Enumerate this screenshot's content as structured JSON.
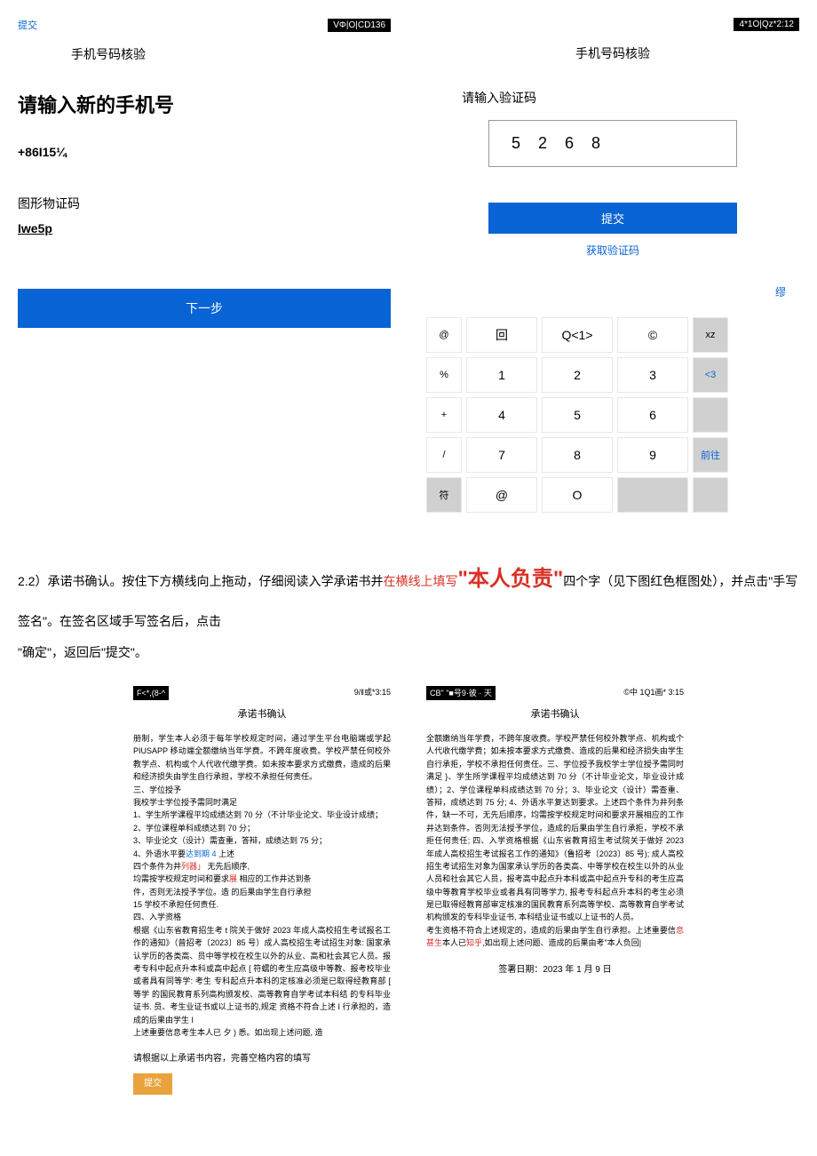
{
  "topLeft": {
    "submitLabel": "提交",
    "statusBadge": "VΦ|O|CD136",
    "title": "手机号码核验",
    "bigTitle": "请输入新的手机号",
    "phonePrefix": "+86I15¼",
    "captchaLabel": "图形物证码",
    "captchaValue": "Iwe5p",
    "nextBtn": "下一步"
  },
  "topRight": {
    "statusBadge": "4*1O|Qz*2:12",
    "title": "手机号码核验",
    "prompt": "请输入验证码",
    "codes": [
      "5",
      "2",
      "6",
      "8"
    ],
    "submitBtn": "提交",
    "getCodeBtn": "获取验证码",
    "topRightCorner": "缪",
    "keypad": [
      {
        "narrow": "@",
        "cells": [
          "回",
          "Q<1>",
          "©"
        ],
        "right": "xz",
        "rightGray": true,
        "rightBlue": false
      },
      {
        "narrow": "%",
        "cells": [
          "1",
          "2",
          "3"
        ],
        "right": "<3",
        "rightGray": true,
        "rightBlue": true
      },
      {
        "narrow": "+",
        "cells": [
          "4",
          "5",
          "6"
        ],
        "right": "",
        "rightGray": true,
        "rightBlue": false
      },
      {
        "narrow": "/",
        "cells": [
          "7",
          "8",
          "9"
        ],
        "right": "前往",
        "rightGray": true,
        "rightBlue": true
      },
      {
        "narrow": "符",
        "narrowGray": true,
        "cells": [
          "@",
          "O",
          ""
        ],
        "right": "",
        "rightGray": true,
        "rightBlue": false
      }
    ]
  },
  "instruction": {
    "prefix": "2.2）承诺书确认。按住下方横线向上拖动，仔细阅读入学承诺书并",
    "red1": "在横线上填写",
    "bigRed": "\"本人负责\"",
    "suffix1": "四个字（见下图红色框图处），并点击\"手写签名\"。在签名区域手写签名后，点击",
    "suffix2": "\"确定\"，返回后\"提交\"。"
  },
  "commitmentLeft": {
    "hdrLeft": "F<*,(8-^",
    "hdrRight": "9/‖或*3:15",
    "title": "承诺书确认",
    "body": "册制，学生本人必须于每年学校规定时间，通过学生平台电脑端或学起PIUSAPP 移动端全额缴纳当年学费。不跨年度收费。学校严禁任何校外教学点、机构或个人代收代缴学费。如未按本要求方式缴费，造成的后果和经济损失由学生自行承担，学校不承担任何责任。\n三、学位授予\n我校学士学位授予需同时满足\n1、学生所学课程平均成绩达到 70 分（不计毕业论文、毕业设计成绩；\n2、学位课程单科成绩达到 70 分；\n3、毕业论文（设计）需查重，答辩，成绩达到 75 分；\n4、外语水平要",
    "link1": "达到期 4",
    "body2": " 上述\n四个条件为井",
    "red1": "列器」",
    "body3": "                    无先后顺序,\n均需按学校规定时间和要求",
    "red2": "展",
    "body4": " 相应的工作井达到条\n件，否则无法授予学位。造    的后果由学生自行承担\n15 学校不承担任何责任.\n四、入学资格\n根据《山东省教育招生考 t 院关于做好 2023 年成人高校招生考试报名工作的通知》（曾招考〔2023〕85 号）成人高校招生考试招生对象: 国家承认学历的各类高、员中等学校在校生以外的从业、高和社会其它人员。报考专科中起点升本科或高中起点 [ 符蠕的考生应高级中等教、报考校毕业或者具有同等学: 考生 专科起点升本科的定核准必须是已取得经教育部 [ 等学 的国民教育系列高构颁发校、高等教育自学考试本科结 的专科毕业证书. 员、考生业证书或以上证书的,规定    资格不符合上述 I 行承担的，造成的后果由学生 I\n   上述重要信息考生本人已 夕 ) 悉。如出现上述问题,  造",
    "bottomText": "请根据以上承诺书内容，完善空格内容的填写",
    "submitBtn": "提交"
  },
  "commitmentRight": {
    "hdrLeft": "CB\" \"■号9·彼 · 天",
    "hdrRight": "©中 1Q1画* 3:15",
    "title": "承诺书确认",
    "body": "全额嫩纳当年学费，不跨年度收费。学校严禁任何校外教学点、机构或个人代收代缴学费；如未按本要求方式缴费、造成的后果和经济损失由学生自行承拒，学校不承担任何责任。三、学位授予我校学士学位授予需同时满足 }、学生所学课程平均成绩达到 70 分（不计毕业论文，毕业设计成绩）；2、学位课程单科成绩达到 70 分；3、毕业论文（设计）需查重、答辩，成绩达到 75 分; 4、外语水平复达到要求。上述四个条件为井列条件，缺一不可，无先后顺序，均需按学校规定时间和要求开展相应的工作井达到条件。否则无法授予学位，造成的后果由学生自行承拒，学校不承拒任何责任; 四、入学资格根据《山东省教育招生考试院关于做好 2023 年成人高校招生考试报名工作的通知》（鲁招考〔2023〕85 号); 成人高校招生考试招生对象为国家承认学历的各类高、中等学校在校生以外的从业人员和社会其它人员，报考高中起点升本科或高中起点升专科的考生应高级中等教育学校毕业或者具有同等学力, 报考专科起点升本科的考生必须是已取得经教育部审定核准的国民教育系列高等学校、高等教育自学考试机构颁发的专科毕业证书, 本科结业证书或以上证书的人员。\n考生资格不符合上述规定的，造成的后果由学生自行承担。上述重要信",
    "red1": "息甚生",
    "body2": "本人已",
    "red2": "知乎",
    "body3": ",如出现上述问题、造成的后果由考\"本人负回|",
    "signDate": "签署日期：2023 年 1 月 9 日"
  }
}
